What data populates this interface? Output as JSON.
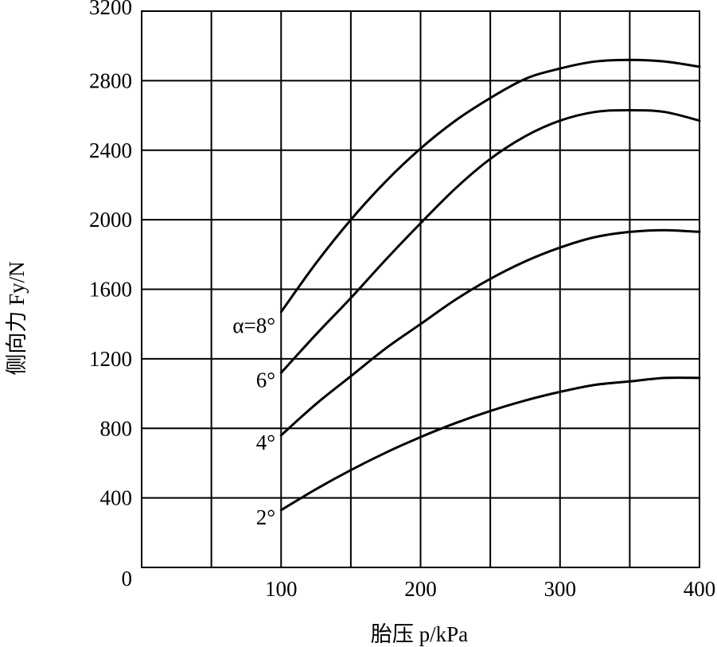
{
  "chart_data": {
    "type": "line",
    "title": "",
    "xlabel": "胎压 p/kPa",
    "ylabel": "侧向力 Fy/N",
    "xlim": [
      0,
      400
    ],
    "ylim": [
      0,
      3200
    ],
    "x_ticks": [
      100,
      200,
      300,
      400
    ],
    "x_tick_labels": [
      "100",
      "200",
      "300",
      "400"
    ],
    "y_ticks": [
      0,
      400,
      800,
      1200,
      1600,
      2000,
      2400,
      2800,
      3200
    ],
    "y_tick_labels": [
      "0",
      "400",
      "800",
      "1200",
      "1600",
      "2000",
      "2400",
      "2800",
      "3200"
    ],
    "grid": true,
    "series": [
      {
        "name": "α=8°",
        "x": [
          100,
          125,
          150,
          175,
          200,
          225,
          250,
          275,
          300,
          325,
          350,
          375,
          400
        ],
        "y": [
          1470,
          1750,
          2000,
          2220,
          2410,
          2570,
          2700,
          2810,
          2870,
          2910,
          2920,
          2910,
          2880
        ]
      },
      {
        "name": "6°",
        "x": [
          100,
          125,
          150,
          175,
          200,
          225,
          250,
          275,
          300,
          325,
          350,
          375,
          400
        ],
        "y": [
          1120,
          1340,
          1550,
          1770,
          1980,
          2180,
          2350,
          2480,
          2570,
          2620,
          2630,
          2620,
          2570
        ]
      },
      {
        "name": "4°",
        "x": [
          100,
          125,
          150,
          175,
          200,
          225,
          250,
          275,
          300,
          325,
          350,
          375,
          400
        ],
        "y": [
          760,
          940,
          1100,
          1260,
          1400,
          1540,
          1660,
          1760,
          1840,
          1900,
          1930,
          1940,
          1930
        ]
      },
      {
        "name": "2°",
        "x": [
          100,
          125,
          150,
          175,
          200,
          225,
          250,
          275,
          300,
          325,
          350,
          375,
          400
        ],
        "y": [
          330,
          450,
          560,
          660,
          750,
          830,
          900,
          960,
          1010,
          1050,
          1070,
          1090,
          1090
        ]
      }
    ],
    "series_labels": [
      "α=8°",
      "6°",
      "4°",
      "2°"
    ]
  }
}
